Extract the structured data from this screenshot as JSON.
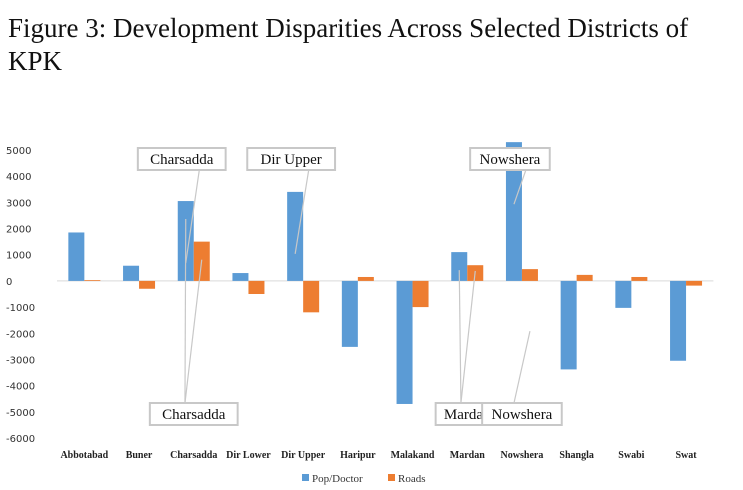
{
  "title": "Figure 3: Development Disparities Across Selected Districts of KPK",
  "chart_data": {
    "type": "bar",
    "categories": [
      "Abbotabad",
      "Buner",
      "Charsadda",
      "Dir Lower",
      "Dir Upper",
      "Haripur",
      "Malakand",
      "Mardan",
      "Nowshera",
      "Shangla",
      "Swabi",
      "Swat"
    ],
    "series": [
      {
        "name": "Pop/Doctor",
        "color": "#5B9BD5",
        "values": [
          1850,
          580,
          3050,
          300,
          3400,
          -2520,
          -4700,
          1100,
          5300,
          -3380,
          -1030,
          -3050
        ]
      },
      {
        "name": "Roads",
        "color": "#ED7D31",
        "values": [
          30,
          -300,
          1500,
          -500,
          -1200,
          150,
          -1000,
          600,
          450,
          230,
          150,
          -180
        ]
      }
    ],
    "ylim": [
      -6000,
      5000
    ],
    "yticks": [
      5000,
      4000,
      3000,
      2000,
      1000,
      0,
      -1000,
      -2000,
      -3000,
      -4000,
      -5000,
      -6000
    ],
    "grid": false,
    "legend_position": "bottom",
    "annotations": [
      {
        "text": "Charsadda",
        "category": "Charsadda",
        "series": "Pop/Doctor",
        "box": "top"
      },
      {
        "text": "Charsadda",
        "category": "Charsadda",
        "series": "both",
        "box": "bottom"
      },
      {
        "text": "Dir Upper",
        "category": "Dir Upper",
        "series": "Pop/Doctor",
        "box": "top"
      },
      {
        "text": "Mardan",
        "category": "Mardan",
        "series": "both",
        "box": "bottom"
      },
      {
        "text": "Nowshera",
        "category": "Nowshera",
        "series": "Pop/Doctor",
        "box": "top"
      },
      {
        "text": "Nowshera",
        "category": "Nowshera",
        "series": "Roads",
        "box": "bottom"
      }
    ]
  }
}
